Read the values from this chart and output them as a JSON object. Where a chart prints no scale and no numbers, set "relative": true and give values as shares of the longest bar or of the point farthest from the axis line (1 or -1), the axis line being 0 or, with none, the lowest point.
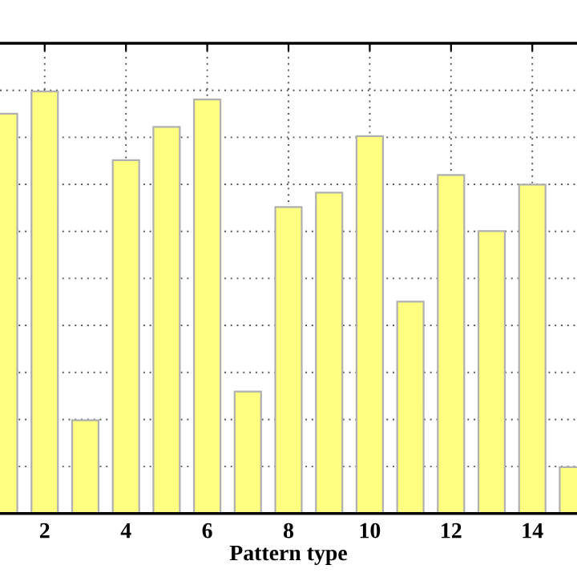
{
  "chart_data": {
    "type": "bar",
    "relative": true,
    "xlabel": "Pattern type",
    "categories": [
      null,
      "2",
      null,
      "4",
      null,
      "6",
      null,
      "8",
      null,
      "10",
      null,
      "12",
      null,
      "14",
      null
    ],
    "values": [
      0.947,
      1,
      0.221,
      0.837,
      0.916,
      0.981,
      0.289,
      0.726,
      0.76,
      0.894,
      0.502,
      0.802,
      0.669,
      0.779,
      0.11
    ],
    "color": "#ffff80",
    "grid": true
  }
}
